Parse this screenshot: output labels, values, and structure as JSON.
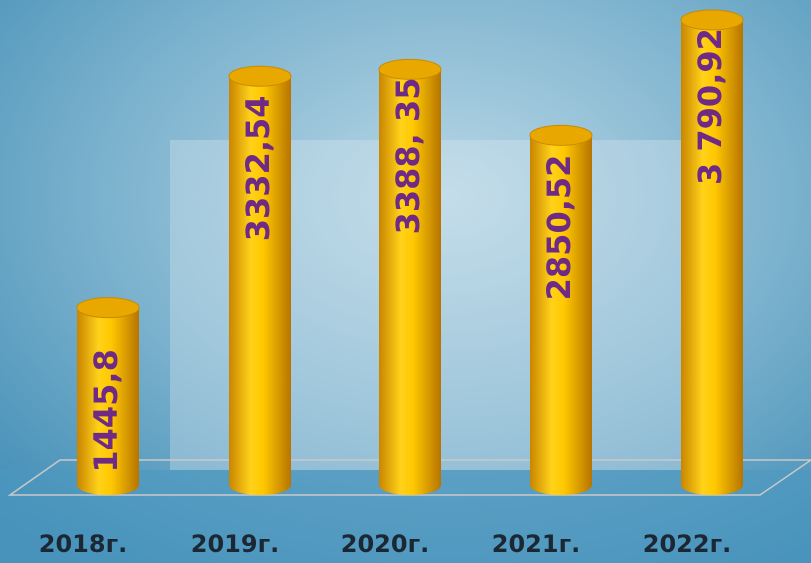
{
  "chart_data": {
    "type": "bar3d",
    "categories": [
      "2018г.",
      "2019г.",
      "2020г.",
      "2021г.",
      "2022г."
    ],
    "values": [
      1445.8,
      3332.54,
      3388.35,
      2850.52,
      3790.92
    ],
    "value_labels": [
      "1445,8",
      "3332,54",
      "3388, 35",
      "2850,52",
      "3 790,92"
    ],
    "color": "#f5b800"
  }
}
